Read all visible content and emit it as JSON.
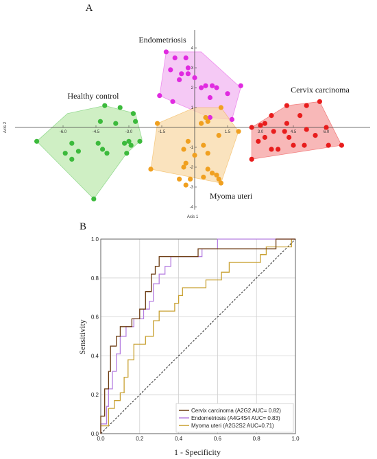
{
  "panel_a_label": "A",
  "panel_b_label": "B",
  "chart_data": [
    {
      "type": "scatter",
      "title": "",
      "xlabel": "Axis 1",
      "ylabel": "Axis 2",
      "xlim": [
        -7.5,
        7.0
      ],
      "ylim": [
        -4.3,
        4.5
      ],
      "x_ticks": [
        "-6.0",
        "-4.5",
        "-3.0",
        "-1.5",
        "1.5",
        "3.0",
        "4.5",
        "6.0"
      ],
      "y_ticks": [
        "4",
        "3",
        "2",
        "1",
        "-1",
        "-2",
        "-3",
        "-4"
      ],
      "grid": false,
      "series": [
        {
          "name": "Healthy control",
          "color": "#3cba3c",
          "fill": "#bfe9b0",
          "hull": [
            [
              -4.1,
              1.1
            ],
            [
              -2.7,
              0.7
            ],
            [
              -2.4,
              -0.6
            ],
            [
              -3.1,
              -1.3
            ],
            [
              -4.6,
              -3.6
            ],
            [
              -7.2,
              -0.7
            ],
            [
              -5.8,
              0.7
            ]
          ],
          "points": [
            [
              -4.1,
              1.1
            ],
            [
              -3.4,
              1.0
            ],
            [
              -2.8,
              0.7
            ],
            [
              -2.7,
              0.3
            ],
            [
              -4.3,
              0.3
            ],
            [
              -3.6,
              0.2
            ],
            [
              -7.2,
              -0.7
            ],
            [
              -5.6,
              -0.8
            ],
            [
              -4.4,
              -0.8
            ],
            [
              -3.2,
              -0.8
            ],
            [
              -2.5,
              -0.7
            ],
            [
              -2.9,
              -0.9
            ],
            [
              -3.0,
              -0.7
            ],
            [
              -4.0,
              -1.3
            ],
            [
              -4.2,
              -1.1
            ],
            [
              -5.3,
              -1.2
            ],
            [
              -5.9,
              -1.3
            ],
            [
              -5.6,
              -1.6
            ],
            [
              -3.1,
              -1.3
            ],
            [
              -4.6,
              -3.6
            ]
          ]
        },
        {
          "name": "Endometriosis",
          "color": "#e02ae0",
          "fill": "#f2b7f2",
          "hull": [
            [
              -1.3,
              3.8
            ],
            [
              0.3,
              3.8
            ],
            [
              2.1,
              2.0
            ],
            [
              1.7,
              0.4
            ],
            [
              0.7,
              0.5
            ],
            [
              -1.0,
              1.3
            ],
            [
              -1.6,
              1.6
            ]
          ],
          "points": [
            [
              -1.3,
              3.8
            ],
            [
              -0.4,
              3.5
            ],
            [
              -0.9,
              3.5
            ],
            [
              -0.3,
              3.0
            ],
            [
              -0.6,
              2.7
            ],
            [
              -1.1,
              2.9
            ],
            [
              0.0,
              2.5
            ],
            [
              -0.7,
              2.4
            ],
            [
              -0.3,
              2.7
            ],
            [
              0.5,
              2.1
            ],
            [
              0.3,
              2.0
            ],
            [
              1.0,
              2.0
            ],
            [
              0.8,
              2.1
            ],
            [
              2.1,
              2.1
            ],
            [
              1.5,
              1.7
            ],
            [
              0.7,
              1.5
            ],
            [
              -1.6,
              1.6
            ],
            [
              -1.0,
              1.3
            ],
            [
              1.7,
              0.4
            ],
            [
              0.7,
              0.5
            ]
          ]
        },
        {
          "name": "Myoma uteri",
          "color": "#f0a020",
          "fill": "#f8d9a8",
          "hull": [
            [
              -1.7,
              0.2
            ],
            [
              0.0,
              1.0
            ],
            [
              1.2,
              1.0
            ],
            [
              2.0,
              -0.2
            ],
            [
              1.2,
              -2.8
            ],
            [
              -2.0,
              -2.1
            ]
          ],
          "points": [
            [
              0.3,
              0.2
            ],
            [
              0.6,
              0.3
            ],
            [
              1.2,
              1.0
            ],
            [
              0.5,
              0.5
            ],
            [
              -1.7,
              0.2
            ],
            [
              1.1,
              -0.4
            ],
            [
              2.0,
              -0.2
            ],
            [
              -0.3,
              -0.7
            ],
            [
              -0.5,
              -1.1
            ],
            [
              0.4,
              -0.9
            ],
            [
              0.0,
              -1.4
            ],
            [
              0.6,
              -1.3
            ],
            [
              -0.4,
              -1.8
            ],
            [
              -0.5,
              -2.0
            ],
            [
              0.6,
              -2.1
            ],
            [
              0.8,
              -2.3
            ],
            [
              0.4,
              -2.5
            ],
            [
              -0.2,
              -2.6
            ],
            [
              -0.7,
              -2.6
            ],
            [
              1.1,
              -2.6
            ],
            [
              1.0,
              -2.4
            ],
            [
              -2.0,
              -2.1
            ],
            [
              -0.4,
              -2.9
            ],
            [
              1.2,
              -2.8
            ]
          ]
        },
        {
          "name": "Cervix carcinoma",
          "color": "#e81c1c",
          "fill": "#f5a0a0",
          "hull": [
            [
              4.2,
              1.1
            ],
            [
              5.7,
              1.3
            ],
            [
              6.7,
              -0.9
            ],
            [
              2.6,
              -1.6
            ],
            [
              2.6,
              0.0
            ]
          ],
          "points": [
            [
              4.2,
              1.1
            ],
            [
              5.1,
              1.1
            ],
            [
              5.7,
              1.3
            ],
            [
              3.5,
              0.6
            ],
            [
              4.8,
              0.6
            ],
            [
              4.2,
              0.2
            ],
            [
              3.0,
              0.1
            ],
            [
              3.2,
              0.2
            ],
            [
              2.6,
              0.0
            ],
            [
              3.6,
              -0.2
            ],
            [
              4.1,
              -0.2
            ],
            [
              5.1,
              -0.1
            ],
            [
              6.0,
              0.0
            ],
            [
              5.5,
              -0.4
            ],
            [
              3.2,
              -0.5
            ],
            [
              2.9,
              -0.7
            ],
            [
              4.3,
              -0.5
            ],
            [
              4.5,
              -0.9
            ],
            [
              5.0,
              -0.9
            ],
            [
              6.1,
              -0.9
            ],
            [
              3.5,
              -1.1
            ],
            [
              2.6,
              -1.6
            ],
            [
              3.8,
              -1.1
            ],
            [
              6.7,
              -0.9
            ]
          ]
        }
      ]
    },
    {
      "type": "line",
      "title": "",
      "xlabel": "1 - Specificity",
      "ylabel": "Sensitivity",
      "xlim": [
        0,
        1
      ],
      "ylim": [
        0,
        1
      ],
      "x_ticks": [
        "0.0",
        "0.2",
        "0.4",
        "0.6",
        "0.8",
        "1.0"
      ],
      "y_ticks": [
        "0.0",
        "0.2",
        "0.4",
        "0.6",
        "0.8",
        "1.0"
      ],
      "grid": true,
      "legend_position": "bottom-right",
      "reference_line": "diagonal",
      "series": [
        {
          "name": "Cervix carcinoma (A2G2 AUC= 0.82)",
          "color": "#6b3a10",
          "points": [
            [
              0,
              0
            ],
            [
              0,
              0.09
            ],
            [
              0.02,
              0.09
            ],
            [
              0.02,
              0.23
            ],
            [
              0.04,
              0.23
            ],
            [
              0.04,
              0.32
            ],
            [
              0.05,
              0.32
            ],
            [
              0.05,
              0.45
            ],
            [
              0.08,
              0.45
            ],
            [
              0.08,
              0.5
            ],
            [
              0.1,
              0.5
            ],
            [
              0.1,
              0.55
            ],
            [
              0.16,
              0.55
            ],
            [
              0.16,
              0.59
            ],
            [
              0.2,
              0.59
            ],
            [
              0.2,
              0.64
            ],
            [
              0.23,
              0.64
            ],
            [
              0.23,
              0.73
            ],
            [
              0.26,
              0.73
            ],
            [
              0.26,
              0.82
            ],
            [
              0.28,
              0.82
            ],
            [
              0.28,
              0.86
            ],
            [
              0.3,
              0.86
            ],
            [
              0.3,
              0.91
            ],
            [
              0.5,
              0.91
            ],
            [
              0.5,
              0.95
            ],
            [
              0.9,
              0.95
            ],
            [
              0.9,
              1.0
            ],
            [
              1,
              1
            ]
          ]
        },
        {
          "name": "Endometriosis (A4G4S4 AUC= 0.83)",
          "color": "#b57ee0",
          "points": [
            [
              0,
              0
            ],
            [
              0,
              0.05
            ],
            [
              0.03,
              0.05
            ],
            [
              0.03,
              0.14
            ],
            [
              0.04,
              0.14
            ],
            [
              0.04,
              0.23
            ],
            [
              0.06,
              0.23
            ],
            [
              0.06,
              0.32
            ],
            [
              0.08,
              0.32
            ],
            [
              0.08,
              0.41
            ],
            [
              0.1,
              0.41
            ],
            [
              0.1,
              0.5
            ],
            [
              0.13,
              0.5
            ],
            [
              0.13,
              0.55
            ],
            [
              0.17,
              0.55
            ],
            [
              0.17,
              0.59
            ],
            [
              0.22,
              0.59
            ],
            [
              0.22,
              0.64
            ],
            [
              0.25,
              0.64
            ],
            [
              0.25,
              0.68
            ],
            [
              0.27,
              0.68
            ],
            [
              0.27,
              0.77
            ],
            [
              0.3,
              0.77
            ],
            [
              0.3,
              0.82
            ],
            [
              0.33,
              0.82
            ],
            [
              0.33,
              0.86
            ],
            [
              0.36,
              0.86
            ],
            [
              0.36,
              0.91
            ],
            [
              0.52,
              0.91
            ],
            [
              0.52,
              0.95
            ],
            [
              0.6,
              0.95
            ],
            [
              0.6,
              1.0
            ],
            [
              1,
              1
            ]
          ]
        },
        {
          "name": "Myoma uteri (A2G2S2 AUC=0.71)",
          "color": "#c8a030",
          "points": [
            [
              0,
              0
            ],
            [
              0,
              0.04
            ],
            [
              0.04,
              0.04
            ],
            [
              0.04,
              0.13
            ],
            [
              0.07,
              0.13
            ],
            [
              0.07,
              0.17
            ],
            [
              0.1,
              0.17
            ],
            [
              0.1,
              0.21
            ],
            [
              0.12,
              0.21
            ],
            [
              0.12,
              0.29
            ],
            [
              0.14,
              0.29
            ],
            [
              0.14,
              0.38
            ],
            [
              0.17,
              0.38
            ],
            [
              0.17,
              0.46
            ],
            [
              0.23,
              0.46
            ],
            [
              0.23,
              0.5
            ],
            [
              0.27,
              0.5
            ],
            [
              0.27,
              0.58
            ],
            [
              0.3,
              0.58
            ],
            [
              0.3,
              0.63
            ],
            [
              0.38,
              0.63
            ],
            [
              0.38,
              0.67
            ],
            [
              0.4,
              0.67
            ],
            [
              0.4,
              0.71
            ],
            [
              0.42,
              0.71
            ],
            [
              0.42,
              0.75
            ],
            [
              0.54,
              0.75
            ],
            [
              0.54,
              0.79
            ],
            [
              0.62,
              0.79
            ],
            [
              0.62,
              0.83
            ],
            [
              0.66,
              0.83
            ],
            [
              0.66,
              0.88
            ],
            [
              0.82,
              0.88
            ],
            [
              0.82,
              0.92
            ],
            [
              0.85,
              0.92
            ],
            [
              0.85,
              0.96
            ],
            [
              0.98,
              0.96
            ],
            [
              0.98,
              1.0
            ],
            [
              1,
              1
            ]
          ]
        }
      ]
    }
  ]
}
